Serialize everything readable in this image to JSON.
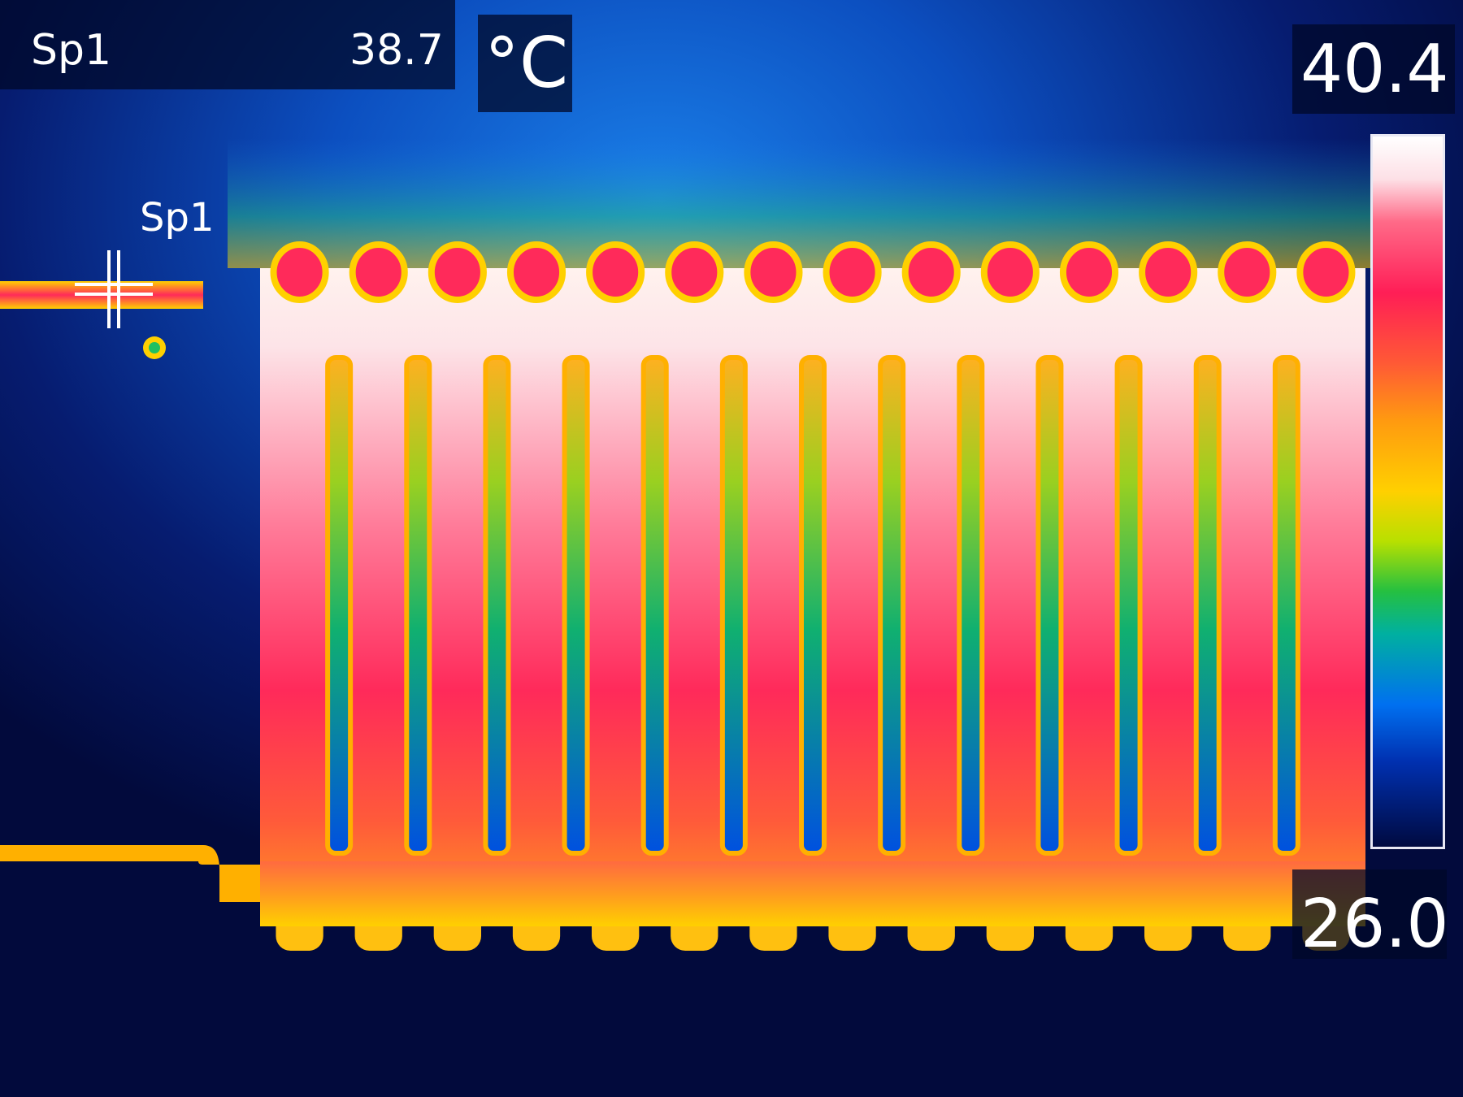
{
  "measurement": {
    "spot_label": "Sp1",
    "spot_value": "38.7",
    "unit": "°C"
  },
  "scale": {
    "max": "40.4",
    "min": "26.0",
    "palette": "iron-rainbow"
  },
  "marker": {
    "label": "Sp1",
    "icon": "crosshair-icon"
  },
  "colors": {
    "background": "#020a3c",
    "hot": "#ff1e56",
    "warm": "#ffd000",
    "cool": "#0070f0",
    "text": "#ffffff"
  }
}
